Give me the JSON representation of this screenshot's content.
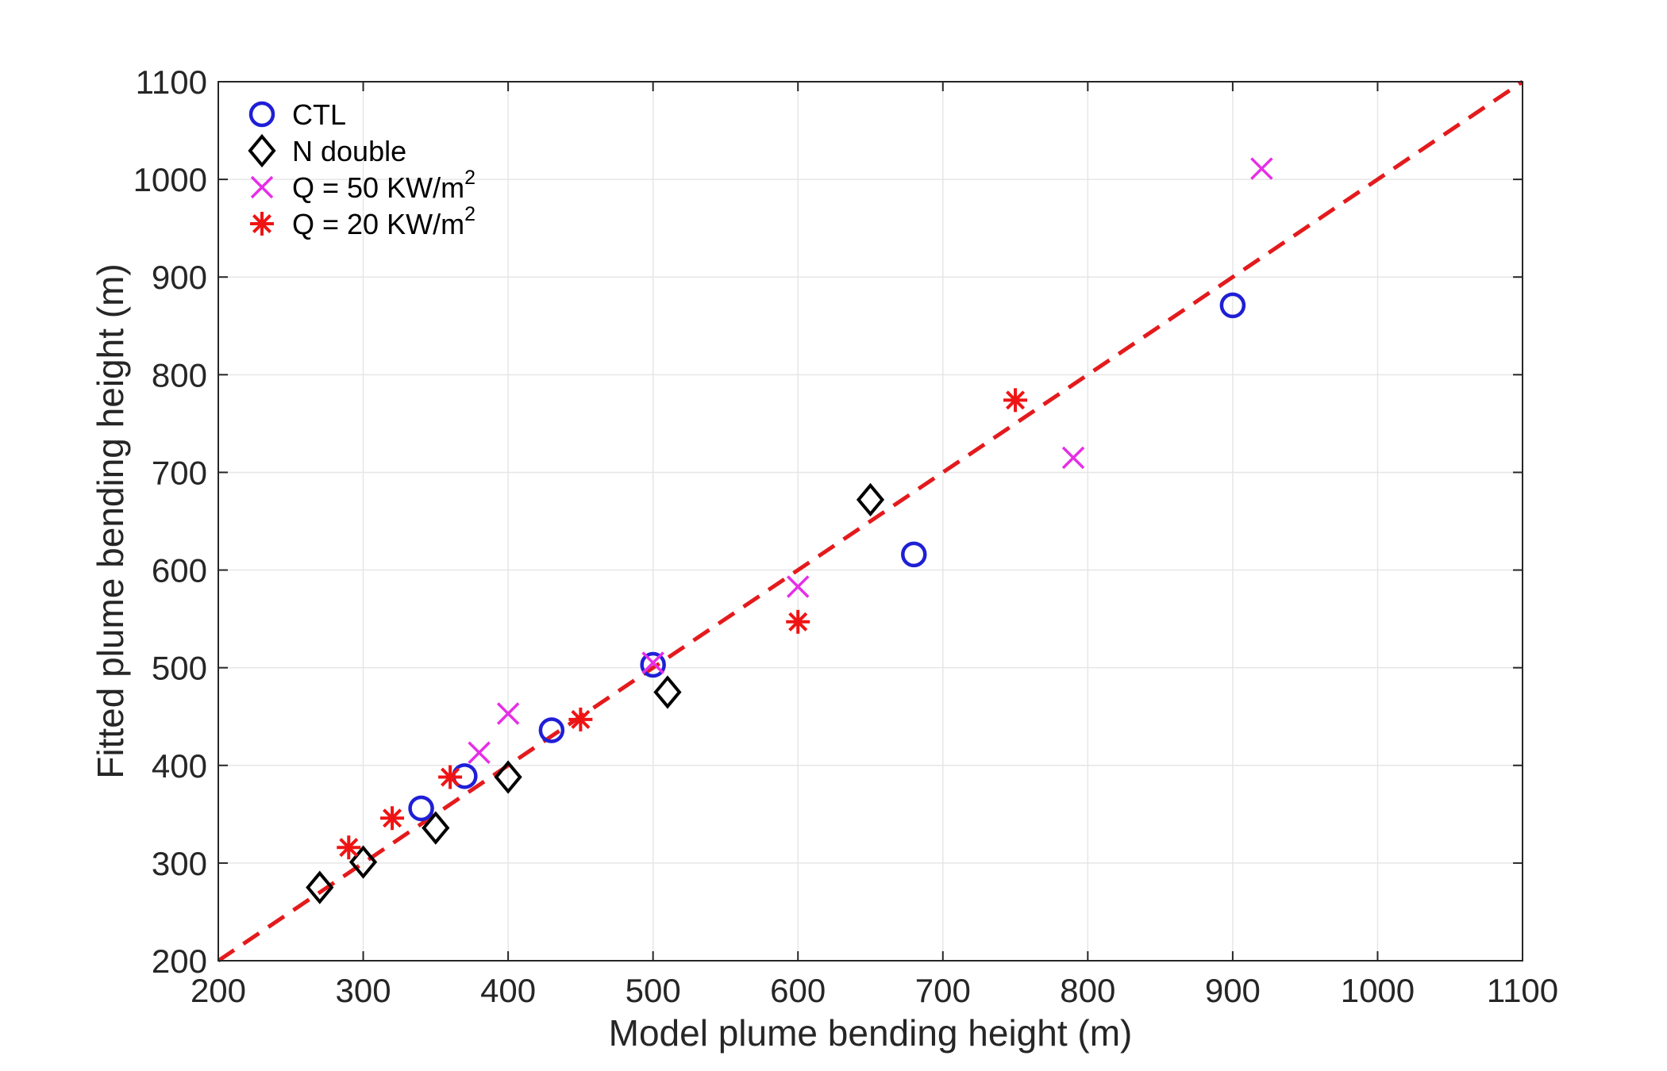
{
  "chart_data": {
    "type": "scatter",
    "title": "",
    "xlabel": "Model plume bending height (m)",
    "ylabel": "Fitted plume bending height (m)",
    "xlim": [
      200,
      1100
    ],
    "ylim": [
      200,
      1100
    ],
    "xticks": [
      "200",
      "300",
      "400",
      "500",
      "600",
      "700",
      "800",
      "900",
      "1000",
      "1100"
    ],
    "yticks": [
      "200",
      "300",
      "400",
      "500",
      "600",
      "700",
      "800",
      "900",
      "1000",
      "1100"
    ],
    "grid": true,
    "legend_position": "top-left",
    "reference_line": {
      "name": "1:1 line",
      "style": "dashed",
      "color": "#e41a1c",
      "x": [
        200,
        1100
      ],
      "y": [
        200,
        1100
      ]
    },
    "series": [
      {
        "name": "CTL",
        "marker": "circle",
        "color": "#1f1fd6",
        "legend": {
          "text": "CTL",
          "sup": ""
        },
        "points": [
          [
            340,
            356
          ],
          [
            370,
            389
          ],
          [
            430,
            436
          ],
          [
            500,
            503
          ],
          [
            680,
            616
          ],
          [
            900,
            871
          ]
        ]
      },
      {
        "name": "N double",
        "marker": "diamond",
        "color": "#000000",
        "legend": {
          "text": "N double",
          "sup": ""
        },
        "points": [
          [
            270,
            275
          ],
          [
            300,
            301
          ],
          [
            350,
            336
          ],
          [
            400,
            388
          ],
          [
            510,
            475
          ],
          [
            650,
            672
          ]
        ]
      },
      {
        "name": "Q = 50 KW/m2",
        "marker": "x",
        "color": "#e62ee6",
        "legend": {
          "text": "Q = 50 KW/m",
          "sup": "2"
        },
        "points": [
          [
            380,
            413
          ],
          [
            400,
            453
          ],
          [
            500,
            505
          ],
          [
            600,
            583
          ],
          [
            790,
            715
          ],
          [
            920,
            1011
          ]
        ]
      },
      {
        "name": "Q = 20 KW/m2",
        "marker": "asterisk",
        "color": "#ef1414",
        "legend": {
          "text": "Q = 20 KW/m",
          "sup": "2"
        },
        "points": [
          [
            290,
            316
          ],
          [
            320,
            346
          ],
          [
            360,
            388
          ],
          [
            450,
            447
          ],
          [
            600,
            547
          ],
          [
            750,
            774
          ]
        ]
      }
    ]
  }
}
